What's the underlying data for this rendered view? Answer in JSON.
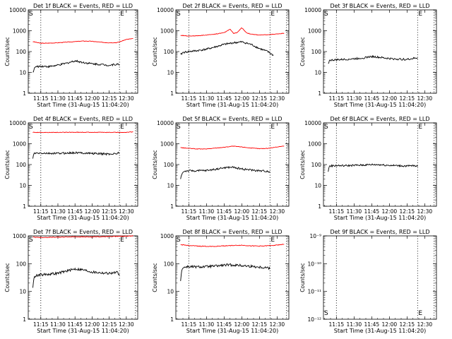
{
  "chart_data": [
    {
      "type": "line",
      "title": "Det 1f BLACK = Events, RED = LLD",
      "ylabel": "Counts/sec",
      "xlabel": "Start Time (31-Aug-15 11:04:20)",
      "y_scale": "log",
      "ylim": [
        1,
        10000
      ],
      "y_ticks": [
        "1",
        "10",
        "100",
        "1000",
        "10000"
      ],
      "x_ticks": [
        "11:15",
        "11:30",
        "11:45",
        "12:00",
        "12:15",
        "12:30"
      ],
      "markers": [
        "S",
        "E"
      ],
      "series": [
        {
          "color": "#ff0000",
          "x": [
            "11:08",
            "11:15",
            "11:22",
            "11:30",
            "11:38",
            "11:45",
            "11:52",
            "12:00",
            "12:08",
            "12:15",
            "12:22",
            "12:30",
            "12:36"
          ],
          "y": [
            300,
            250,
            255,
            265,
            285,
            300,
            320,
            310,
            280,
            265,
            270,
            380,
            420
          ]
        },
        {
          "color": "#000000",
          "x": [
            "11:08",
            "11:10",
            "11:15",
            "11:22",
            "11:30",
            "11:38",
            "11:45",
            "11:52",
            "12:00",
            "12:08",
            "12:15",
            "12:22",
            "12:24"
          ],
          "y": [
            10,
            18,
            20,
            19,
            22,
            28,
            36,
            30,
            26,
            24,
            22,
            25,
            22
          ]
        }
      ]
    },
    {
      "type": "line",
      "title": "Det 2f BLACK = Events, RED = LLD",
      "ylabel": "Counts/sec",
      "xlabel": "Start Time (31-Aug-15 11:04:20)",
      "y_scale": "log",
      "ylim": [
        1,
        10000
      ],
      "y_ticks": [
        "1",
        "10",
        "100",
        "1000",
        "10000"
      ],
      "x_ticks": [
        "11:15",
        "11:30",
        "11:45",
        "12:00",
        "12:15",
        "12:30"
      ],
      "markers": [
        "S",
        "E"
      ],
      "series": [
        {
          "color": "#ff0000",
          "x": [
            "11:08",
            "11:15",
            "11:22",
            "11:30",
            "11:38",
            "11:45",
            "11:50",
            "11:53",
            "11:56",
            "12:00",
            "12:04",
            "12:08",
            "12:15",
            "12:22",
            "12:30",
            "12:36"
          ],
          "y": [
            600,
            560,
            570,
            620,
            700,
            800,
            1200,
            750,
            800,
            1400,
            800,
            680,
            620,
            640,
            700,
            760
          ]
        },
        {
          "color": "#000000",
          "x": [
            "11:08",
            "11:10",
            "11:15",
            "11:22",
            "11:30",
            "11:38",
            "11:45",
            "11:52",
            "12:00",
            "12:08",
            "12:15",
            "12:22",
            "12:27"
          ],
          "y": [
            70,
            90,
            100,
            110,
            130,
            170,
            220,
            260,
            290,
            220,
            140,
            100,
            65
          ]
        }
      ]
    },
    {
      "type": "line",
      "title": "Det 3f BLACK = Events, RED = LLD",
      "ylabel": "Counts/sec",
      "xlabel": "Start Time (31-Aug-15 11:04:20)",
      "y_scale": "log",
      "ylim": [
        1,
        10000
      ],
      "y_ticks": [
        "1",
        "10",
        "100",
        "1000",
        "10000"
      ],
      "x_ticks": [
        "11:15",
        "11:30",
        "11:45",
        "12:00",
        "12:15",
        "12:30"
      ],
      "markers": [
        "S",
        "E"
      ],
      "series": [
        {
          "color": "#000000",
          "x": [
            "11:08",
            "11:09",
            "11:15",
            "11:22",
            "11:30",
            "11:38",
            "11:45",
            "11:52",
            "12:00",
            "12:08",
            "12:15",
            "12:22",
            "12:24"
          ],
          "y": [
            25,
            38,
            40,
            42,
            45,
            50,
            58,
            52,
            46,
            43,
            42,
            48,
            50
          ]
        }
      ]
    },
    {
      "type": "line",
      "title": "Det 4f BLACK = Events, RED = LLD",
      "ylabel": "Counts/sec",
      "xlabel": "Start Time (31-Aug-15 11:04:20)",
      "y_scale": "log",
      "ylim": [
        1,
        10000
      ],
      "y_ticks": [
        "1",
        "10",
        "100",
        "1000",
        "10000"
      ],
      "x_ticks": [
        "11:15",
        "11:30",
        "11:45",
        "12:00",
        "12:15",
        "12:30"
      ],
      "markers": [
        "S",
        "E"
      ],
      "series": [
        {
          "color": "#ff0000",
          "x": [
            "11:08",
            "11:15",
            "11:30",
            "11:45",
            "12:00",
            "12:15",
            "12:30",
            "12:36"
          ],
          "y": [
            3500,
            3500,
            3500,
            3550,
            3550,
            3500,
            3550,
            3700
          ]
        },
        {
          "color": "#000000",
          "x": [
            "11:08",
            "11:09",
            "11:15",
            "11:22",
            "11:30",
            "11:38",
            "11:45",
            "11:52",
            "12:00",
            "12:08",
            "12:15",
            "12:22",
            "12:24"
          ],
          "y": [
            200,
            340,
            350,
            340,
            345,
            355,
            370,
            360,
            345,
            330,
            320,
            340,
            370
          ]
        }
      ]
    },
    {
      "type": "line",
      "title": "Det 5f BLACK = Events, RED = LLD",
      "ylabel": "Counts/sec",
      "xlabel": "Start Time (31-Aug-15 11:04:20)",
      "y_scale": "log",
      "ylim": [
        1,
        10000
      ],
      "y_ticks": [
        "1",
        "10",
        "100",
        "1000",
        "10000"
      ],
      "x_ticks": [
        "11:15",
        "11:30",
        "11:45",
        "12:00",
        "12:15",
        "12:30"
      ],
      "markers": [
        "S",
        "E"
      ],
      "series": [
        {
          "color": "#ff0000",
          "x": [
            "11:08",
            "11:15",
            "11:22",
            "11:30",
            "11:38",
            "11:45",
            "11:52",
            "12:00",
            "12:08",
            "12:15",
            "12:22",
            "12:30",
            "12:36"
          ],
          "y": [
            650,
            600,
            560,
            560,
            620,
            680,
            760,
            700,
            620,
            580,
            600,
            700,
            780
          ]
        },
        {
          "color": "#000000",
          "x": [
            "11:08",
            "11:09",
            "11:11",
            "11:15",
            "11:22",
            "11:30",
            "11:38",
            "11:45",
            "11:52",
            "12:00",
            "12:08",
            "12:15",
            "12:22",
            "12:24"
          ],
          "y": [
            20,
            35,
            48,
            50,
            50,
            52,
            60,
            70,
            75,
            62,
            55,
            50,
            48,
            46
          ]
        }
      ]
    },
    {
      "type": "line",
      "title": "Det 6f BLACK = Events, RED = LLD",
      "ylabel": "Counts/sec",
      "xlabel": "Start Time (31-Aug-15 11:04:20)",
      "y_scale": "log",
      "ylim": [
        1,
        10000
      ],
      "y_ticks": [
        "1",
        "10",
        "100",
        "1000",
        "10000"
      ],
      "x_ticks": [
        "11:15",
        "11:30",
        "11:45",
        "12:00",
        "12:15",
        "12:30"
      ],
      "markers": [
        "S",
        "E"
      ],
      "series": [
        {
          "color": "#000000",
          "x": [
            "11:08",
            "11:09",
            "11:15",
            "11:22",
            "11:30",
            "11:38",
            "11:45",
            "11:52",
            "12:00",
            "12:08",
            "12:15",
            "12:22",
            "12:24"
          ],
          "y": [
            45,
            85,
            90,
            88,
            92,
            95,
            100,
            98,
            92,
            88,
            85,
            88,
            80
          ]
        }
      ]
    },
    {
      "type": "line",
      "title": "Det 7f BLACK = Events, RED = LLD",
      "ylabel": "Counts/sec",
      "xlabel": "Start Time (31-Aug-15 11:04:20)",
      "y_scale": "log",
      "ylim": [
        1,
        1000
      ],
      "y_ticks": [
        "1",
        "10",
        "100",
        "1000"
      ],
      "x_ticks": [
        "11:15",
        "11:30",
        "11:45",
        "12:00",
        "12:15",
        "12:30"
      ],
      "markers": [
        "S",
        "E"
      ],
      "series": [
        {
          "color": "#ff0000",
          "x": [
            "11:08",
            "11:15",
            "11:30",
            "11:45",
            "12:00",
            "12:15",
            "12:30",
            "12:36"
          ],
          "y": [
            900,
            880,
            900,
            930,
            920,
            950,
            980,
            1000
          ]
        },
        {
          "color": "#000000",
          "x": [
            "11:08",
            "11:09",
            "11:11",
            "11:15",
            "11:22",
            "11:30",
            "11:38",
            "11:45",
            "11:52",
            "12:00",
            "12:08",
            "12:15",
            "12:22",
            "12:24"
          ],
          "y": [
            15,
            30,
            38,
            40,
            42,
            45,
            55,
            65,
            60,
            50,
            47,
            45,
            48,
            42
          ]
        }
      ]
    },
    {
      "type": "line",
      "title": "Det 8f BLACK = Events, RED = LLD",
      "ylabel": "Counts/sec",
      "xlabel": "Start Time (31-Aug-15 11:04:20)",
      "y_scale": "log",
      "ylim": [
        1,
        1000
      ],
      "y_ticks": [
        "1",
        "10",
        "100",
        "1000"
      ],
      "x_ticks": [
        "11:15",
        "11:30",
        "11:45",
        "12:00",
        "12:15",
        "12:30"
      ],
      "markers": [
        "S",
        "E"
      ],
      "series": [
        {
          "color": "#ff0000",
          "x": [
            "11:08",
            "11:15",
            "11:22",
            "11:30",
            "11:38",
            "11:45",
            "11:52",
            "12:00",
            "12:08",
            "12:15",
            "12:22",
            "12:30",
            "12:36"
          ],
          "y": [
            480,
            450,
            430,
            420,
            420,
            440,
            450,
            460,
            440,
            430,
            440,
            470,
            500
          ]
        },
        {
          "color": "#000000",
          "x": [
            "11:08",
            "11:09",
            "11:11",
            "11:15",
            "11:22",
            "11:30",
            "11:38",
            "11:45",
            "11:52",
            "12:00",
            "12:08",
            "12:15",
            "12:22",
            "12:24"
          ],
          "y": [
            25,
            60,
            75,
            78,
            76,
            78,
            82,
            88,
            90,
            85,
            80,
            75,
            72,
            65
          ]
        }
      ]
    },
    {
      "type": "line",
      "title": "Det 9f BLACK = Events, RED = LLD",
      "ylabel": "Counts/sec",
      "xlabel": "Start Time (31-Aug-15 11:04:20)",
      "y_scale": "log",
      "ylim": [
        1e-12,
        1e-09
      ],
      "y_ticks": [
        "10⁻¹²",
        "10⁻¹¹",
        "10⁻¹⁰",
        "10⁻⁹"
      ],
      "x_ticks": [
        "11:15",
        "11:30",
        "11:45",
        "12:00",
        "12:15",
        "12:30"
      ],
      "markers": [
        "S",
        "E"
      ],
      "series": []
    }
  ]
}
